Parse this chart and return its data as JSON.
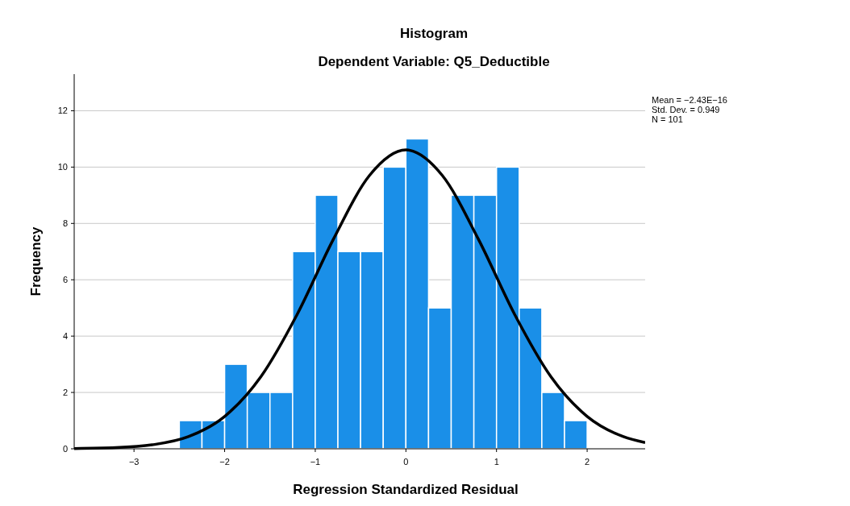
{
  "chart_data": {
    "type": "histogram",
    "title": "Histogram",
    "subtitle": "Dependent Variable: Q5_Deductible",
    "xlabel": "Regression Standardized Residual",
    "ylabel": "Frequency",
    "series": [
      {
        "color": "#1a8fe8",
        "bins": [
          -2.5,
          -2.25,
          -2,
          -1.75,
          -1.5,
          -1.25,
          -1,
          -0.75,
          -0.5,
          -0.25,
          0,
          0.25,
          0.5,
          0.75,
          1,
          1.25,
          1.5,
          1.75,
          2
        ],
        "values": [
          1,
          1,
          3,
          2,
          2,
          7,
          9,
          7,
          7,
          10,
          11,
          5,
          9,
          9,
          10,
          5,
          2,
          1
        ]
      },
      {
        "type": "line",
        "color": "#000000",
        "x": [
          -3.66,
          -3.2,
          -2.8,
          -2.4,
          -2.0,
          -1.6,
          -1.2,
          -0.8,
          -0.4,
          0,
          0.4,
          0.8,
          1.2,
          1.6,
          2.0,
          2.4,
          2.64
        ],
        "values": [
          0.01,
          0.04,
          0.14,
          0.43,
          1.15,
          2.56,
          4.77,
          7.44,
          9.71,
          10.61,
          9.71,
          7.44,
          4.77,
          2.56,
          1.15,
          0.43,
          0.22
        ]
      }
    ],
    "xlim": [
      -3.66,
      2.64
    ],
    "xticks": [
      {
        "value": -3,
        "label": "−3"
      },
      {
        "value": -2,
        "label": "−2"
      },
      {
        "value": -1,
        "label": "−1"
      },
      0,
      1,
      2
    ],
    "ylim": [
      0,
      13.3
    ],
    "yticks": [
      0,
      2,
      4,
      6,
      8,
      10,
      12
    ],
    "grid": "y",
    "annotations": [
      "Mean = −2.43E−16",
      "Std. Dev. = 0.949",
      "N = 101"
    ]
  }
}
